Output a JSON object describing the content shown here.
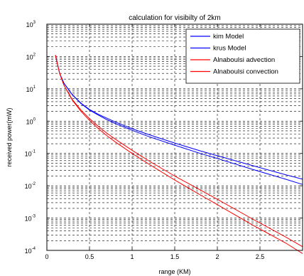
{
  "chart_data": {
    "type": "line",
    "title": "calculation for visibilty of 2km",
    "xlabel": "range (KM)",
    "ylabel": "received power(mW)",
    "xlim": [
      0,
      3
    ],
    "ylim": [
      0.0001,
      1000
    ],
    "yscale": "log",
    "grid": true,
    "legend_position": "top-right",
    "xticks": [
      "0",
      "0.5",
      "1",
      "1.5",
      "2",
      "2.5"
    ],
    "yticks": [
      {
        "base": "10",
        "exp": "-4"
      },
      {
        "base": "10",
        "exp": "-3"
      },
      {
        "base": "10",
        "exp": "-2"
      },
      {
        "base": "10",
        "exp": "-1"
      },
      {
        "base": "10",
        "exp": "0"
      },
      {
        "base": "10",
        "exp": "1"
      },
      {
        "base": "10",
        "exp": "2"
      },
      {
        "base": "10",
        "exp": "3"
      }
    ],
    "series": [
      {
        "name": "kim Model",
        "color": "#0000ff",
        "x": [
          0.1,
          0.15,
          0.2,
          0.3,
          0.4,
          0.5,
          0.6,
          0.7,
          0.8,
          1.0,
          1.2,
          1.5,
          1.8,
          2.0,
          2.4,
          2.8,
          3.0
        ],
        "y": [
          110,
          30,
          15,
          6.5,
          3.6,
          2.3,
          1.65,
          1.25,
          0.95,
          0.58,
          0.38,
          0.21,
          0.12,
          0.085,
          0.043,
          0.022,
          0.016
        ]
      },
      {
        "name": "krus Model",
        "color": "#0000ff",
        "x": [
          0.1,
          0.15,
          0.2,
          0.3,
          0.4,
          0.5,
          0.6,
          0.7,
          0.8,
          1.0,
          1.2,
          1.5,
          1.8,
          2.0,
          2.4,
          2.8,
          3.0
        ],
        "y": [
          110,
          30,
          15,
          6.5,
          3.5,
          2.2,
          1.55,
          1.12,
          0.85,
          0.52,
          0.33,
          0.18,
          0.1,
          0.07,
          0.033,
          0.016,
          0.011
        ]
      },
      {
        "name": "Alnaboulsi advection",
        "color": "#ff0000",
        "x": [
          0.1,
          0.15,
          0.2,
          0.3,
          0.4,
          0.5,
          0.6,
          0.7,
          0.8,
          1.0,
          1.2,
          1.5,
          1.8,
          2.0,
          2.4,
          2.8,
          3.0
        ],
        "y": [
          110,
          30,
          13,
          4.6,
          2.2,
          1.2,
          0.7,
          0.43,
          0.28,
          0.125,
          0.058,
          0.02,
          0.0074,
          0.0038,
          0.00098,
          0.00026,
          0.00013
        ]
      },
      {
        "name": "Alnaboulsi convection",
        "color": "#ff0000",
        "x": [
          0.1,
          0.15,
          0.2,
          0.3,
          0.4,
          0.5,
          0.6,
          0.7,
          0.8,
          1.0,
          1.2,
          1.5,
          1.8,
          2.0,
          2.4,
          2.8,
          3.0
        ],
        "y": [
          110,
          30,
          13,
          4.4,
          2.0,
          1.05,
          0.6,
          0.36,
          0.23,
          0.1,
          0.046,
          0.015,
          0.0052,
          0.0026,
          0.00064,
          0.00017,
          8e-05
        ]
      }
    ]
  }
}
